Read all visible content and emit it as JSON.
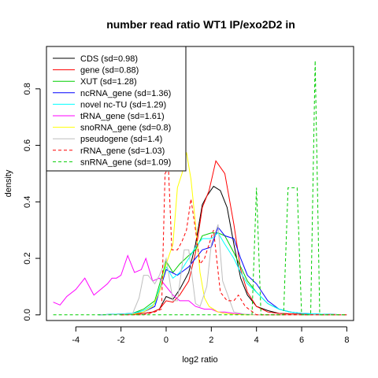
{
  "chart_data": {
    "type": "line",
    "title": "number read ratio WT1 IP/exo2D2 in",
    "xlabel": "log2 ratio",
    "ylabel": "density",
    "xlim": [
      -5.3,
      8.3
    ],
    "ylim": [
      -0.02,
      0.95
    ],
    "xticks": [
      -4,
      -2,
      0,
      2,
      4,
      6,
      8
    ],
    "yticks": [
      0.0,
      0.2,
      0.4,
      0.6,
      0.8
    ],
    "xtick_labels": [
      "-4",
      "-2",
      "0",
      "2",
      "4",
      "6",
      "8"
    ],
    "ytick_labels": [
      "0.0",
      "0.2",
      "0.4",
      "0.6",
      "0.8"
    ],
    "legend_position": "top-left",
    "series": [
      {
        "name": "CDS (sd=0.98)",
        "color": "#000000",
        "dash": "solid",
        "x": [
          -2,
          -1.5,
          -1,
          -0.6,
          -0.3,
          0,
          0.3,
          0.6,
          1,
          1.3,
          1.6,
          1.8,
          2.1,
          2.4,
          2.7,
          3,
          3.3,
          3.6,
          4,
          4.5,
          5,
          6,
          7,
          8
        ],
        "y": [
          0.0,
          0.002,
          0.005,
          0.01,
          0.02,
          0.065,
          0.055,
          0.09,
          0.15,
          0.25,
          0.39,
          0.42,
          0.455,
          0.44,
          0.38,
          0.25,
          0.13,
          0.07,
          0.03,
          0.015,
          0.005,
          0.002,
          0.002,
          0.0
        ]
      },
      {
        "name": "gene (sd=0.88)",
        "color": "#ff0000",
        "dash": "solid",
        "x": [
          -2,
          -1.5,
          -1,
          -0.6,
          -0.3,
          0,
          0.3,
          0.6,
          1,
          1.3,
          1.6,
          1.9,
          2.2,
          2.6,
          3,
          3.3,
          3.6,
          4,
          4.5,
          5,
          6,
          7,
          8
        ],
        "y": [
          0.0,
          0.002,
          0.005,
          0.01,
          0.02,
          0.05,
          0.045,
          0.07,
          0.12,
          0.22,
          0.38,
          0.44,
          0.545,
          0.5,
          0.32,
          0.16,
          0.08,
          0.03,
          0.01,
          0.005,
          0.002,
          0.0,
          0.0
        ]
      },
      {
        "name": "XUT (sd=1.28)",
        "color": "#00cd00",
        "dash": "solid",
        "x": [
          -3,
          -2,
          -1.5,
          -1,
          -0.5,
          0,
          0.3,
          0.6,
          1,
          1.3,
          1.6,
          2,
          2.3,
          2.6,
          3,
          3.3,
          3.6,
          4,
          4.5,
          5,
          5.5,
          6,
          7,
          8
        ],
        "y": [
          0.0,
          0.003,
          0.005,
          0.02,
          0.05,
          0.19,
          0.15,
          0.18,
          0.21,
          0.23,
          0.28,
          0.29,
          0.29,
          0.28,
          0.22,
          0.17,
          0.12,
          0.08,
          0.04,
          0.02,
          0.01,
          0.005,
          0.002,
          0.0
        ]
      },
      {
        "name": "ncRNA_gene (sd=1.36)",
        "color": "#0000ff",
        "dash": "solid",
        "x": [
          -3,
          -2,
          -1.5,
          -1,
          -0.5,
          0,
          0.5,
          1,
          1.3,
          1.6,
          2,
          2.3,
          2.6,
          3,
          3.3,
          3.6,
          4,
          4.5,
          5,
          5.5,
          6,
          7,
          8
        ],
        "y": [
          0.0,
          0.003,
          0.005,
          0.01,
          0.03,
          0.16,
          0.14,
          0.17,
          0.2,
          0.23,
          0.24,
          0.31,
          0.28,
          0.27,
          0.2,
          0.14,
          0.11,
          0.05,
          0.02,
          0.01,
          0.005,
          0.002,
          0.0
        ]
      },
      {
        "name": "novel nc-TU (sd=1.29)",
        "color": "#00ffff",
        "dash": "solid",
        "x": [
          -3,
          -2,
          -1.5,
          -1,
          -0.5,
          0,
          0.3,
          0.6,
          1,
          1.3,
          1.6,
          2,
          2.3,
          2.6,
          3,
          3.3,
          3.6,
          4,
          4.5,
          5,
          5.5,
          6,
          7,
          8
        ],
        "y": [
          0.0,
          0.003,
          0.005,
          0.015,
          0.04,
          0.17,
          0.13,
          0.15,
          0.2,
          0.24,
          0.27,
          0.27,
          0.29,
          0.25,
          0.2,
          0.15,
          0.11,
          0.08,
          0.04,
          0.02,
          0.01,
          0.005,
          0.002,
          0.0
        ]
      },
      {
        "name": "tRNA_gene (sd=1.61)",
        "color": "#ff00ff",
        "dash": "solid",
        "x": [
          -5,
          -4.7,
          -4.4,
          -4,
          -3.6,
          -3.2,
          -2.6,
          -2.4,
          -2.2,
          -2,
          -1.7,
          -1.4,
          -1.1,
          -0.9,
          -0.6,
          -0.3,
          0,
          0.3,
          0.6,
          1,
          1.3,
          1.7,
          2,
          2.3,
          2.6,
          3,
          3.5,
          4,
          5,
          6,
          7,
          8
        ],
        "y": [
          0.045,
          0.035,
          0.065,
          0.09,
          0.13,
          0.07,
          0.11,
          0.13,
          0.13,
          0.14,
          0.21,
          0.15,
          0.16,
          0.2,
          0.12,
          0.13,
          0.1,
          0.07,
          0.05,
          0.05,
          0.03,
          0.02,
          0.02,
          0.01,
          0.01,
          0.005,
          0.002,
          0.0,
          0.0,
          0.0,
          0.0,
          0.0
        ]
      },
      {
        "name": "snoRNA_gene (sd=0.8)",
        "color": "#ffff00",
        "dash": "solid",
        "x": [
          -2,
          -1.5,
          -1,
          -0.6,
          -0.3,
          0,
          0.3,
          0.5,
          0.7,
          0.9,
          1.1,
          1.3,
          1.5,
          1.7,
          1.9,
          2.1,
          2.3,
          2.6,
          3,
          3.5,
          4,
          5,
          6,
          7,
          8
        ],
        "y": [
          0.0,
          0.002,
          0.01,
          0.03,
          0.08,
          0.18,
          0.25,
          0.45,
          0.5,
          0.575,
          0.48,
          0.32,
          0.15,
          0.06,
          0.03,
          0.02,
          0.01,
          0.005,
          0.002,
          0.0,
          0.0,
          0.0,
          0.0,
          0.0,
          0.0
        ]
      },
      {
        "name": "pseudogene (sd=1.4)",
        "color": "#bebebe",
        "dash": "solid",
        "x": [
          -3,
          -2.5,
          -2,
          -1.5,
          -1.2,
          -1,
          -0.8,
          -0.5,
          -0.3,
          0,
          0.3,
          0.5,
          0.8,
          1,
          1.3,
          1.5,
          1.8,
          2,
          2.3,
          2.5,
          3,
          3.5,
          4,
          5,
          6,
          7,
          8
        ],
        "y": [
          0.0,
          0.0,
          0.002,
          0.002,
          0.06,
          0.14,
          0.14,
          0.11,
          0.14,
          0.2,
          0.05,
          0.05,
          0.23,
          0.23,
          0.04,
          0.03,
          0.1,
          0.25,
          0.32,
          0.12,
          0.01,
          0.002,
          0.0,
          0.0,
          0.0,
          0.0,
          0.0
        ]
      },
      {
        "name": "rRNA_gene (sd=1.03)",
        "color": "#ff0000",
        "dash": "dashed",
        "x": [
          -2,
          -1.5,
          -1,
          -0.5,
          -0.2,
          -0.05,
          0.1,
          0.25,
          0.5,
          0.7,
          0.9,
          1.1,
          1.3,
          1.5,
          1.7,
          1.9,
          2.1,
          2.4,
          2.7,
          3,
          3.2,
          3.5,
          4,
          5,
          6,
          7,
          8
        ],
        "y": [
          0.0,
          0.0,
          0.0,
          0.01,
          0.02,
          0.5,
          0.52,
          0.23,
          0.23,
          0.26,
          0.3,
          0.41,
          0.3,
          0.18,
          0.2,
          0.25,
          0.3,
          0.08,
          0.05,
          0.05,
          0.07,
          0.03,
          0.0,
          0.0,
          0.0,
          0.0,
          0.0
        ]
      },
      {
        "name": "snRNA_gene (sd=1.09)",
        "color": "#00cd00",
        "dash": "dashed",
        "x": [
          -5,
          -4,
          -3,
          -2,
          -1,
          0,
          1,
          2,
          2.8,
          3,
          3.2,
          3.4,
          3.6,
          3.8,
          4,
          4.2,
          4.4,
          4.6,
          4.8,
          5,
          5.2,
          5.4,
          5.6,
          5.8,
          6,
          6.2,
          6.4,
          6.6,
          6.8,
          7,
          7.2,
          7.4,
          8
        ],
        "y": [
          0.0,
          0.0,
          0.0,
          0.0,
          0.0,
          0.0,
          0.0,
          0.0,
          0.0,
          0.0,
          0.0,
          0.0,
          0.0,
          0.0,
          0.45,
          0.0,
          0.0,
          0.0,
          0.0,
          0.0,
          0.0,
          0.45,
          0.45,
          0.45,
          0.0,
          0.0,
          0.0,
          0.9,
          0.0,
          0.0,
          0.0,
          0.0,
          0.0
        ]
      }
    ]
  }
}
